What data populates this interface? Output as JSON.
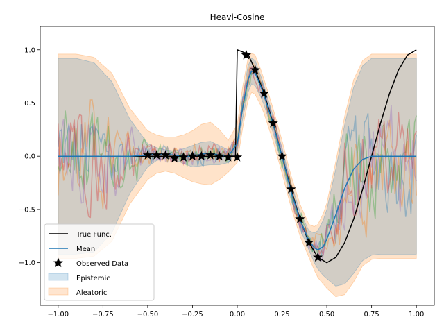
{
  "chart_data": {
    "type": "line",
    "title": "Heavi-Cosine",
    "xlabel": "",
    "ylabel": "",
    "xlim": [
      -1.1,
      1.1
    ],
    "ylim": [
      -1.4,
      1.22
    ],
    "x_ticks": [
      -1.0,
      -0.75,
      -0.5,
      -0.25,
      0.0,
      0.25,
      0.5,
      0.75,
      1.0
    ],
    "x_tick_labels": [
      "−1.00",
      "−0.75",
      "−0.50",
      "−0.25",
      "0.00",
      "0.25",
      "0.50",
      "0.75",
      "1.00"
    ],
    "y_ticks": [
      -1.0,
      -0.5,
      0.0,
      0.5,
      1.0
    ],
    "y_tick_labels": [
      "−1.0",
      "−0.5",
      "0.0",
      "0.5",
      "1.0"
    ],
    "grid": false,
    "legend_position": "lower-left",
    "colors": {
      "true_func": "#000000",
      "mean": "#1f77b4",
      "observed": "#000000",
      "epistemic": "#1f77b4",
      "aleatoric": "#ff7f0e",
      "samples": [
        "#1f77b4",
        "#ff7f0e",
        "#2ca02c",
        "#d62728",
        "#9467bd"
      ]
    },
    "legend": [
      {
        "label": "True Func.",
        "kind": "line-black"
      },
      {
        "label": "Mean",
        "kind": "line-blue"
      },
      {
        "label": "Observed Data",
        "kind": "star"
      },
      {
        "label": "Epistemic",
        "kind": "patch-blue"
      },
      {
        "label": "Aleatoric",
        "kind": "patch-orange"
      }
    ],
    "observed_points": {
      "x": [
        -0.5,
        -0.45,
        -0.4,
        -0.35,
        -0.3,
        -0.25,
        -0.2,
        -0.15,
        -0.1,
        -0.05,
        0.0,
        0.05,
        0.1,
        0.15,
        0.2,
        0.25,
        0.3,
        0.35,
        0.4,
        0.45
      ],
      "y": [
        0.01,
        0.01,
        0.01,
        -0.02,
        -0.01,
        0.0,
        0.0,
        0.01,
        0.0,
        -0.01,
        -0.01,
        0.95,
        0.81,
        0.59,
        0.31,
        0.0,
        -0.31,
        -0.59,
        -0.81,
        -0.95
      ]
    },
    "mean": {
      "x": [
        -1.0,
        -0.9,
        -0.8,
        -0.7,
        -0.6,
        -0.5,
        -0.45,
        -0.4,
        -0.35,
        -0.3,
        -0.25,
        -0.2,
        -0.15,
        -0.1,
        -0.05,
        0.0,
        0.03,
        0.06,
        0.08,
        0.1,
        0.13,
        0.15,
        0.2,
        0.25,
        0.3,
        0.35,
        0.4,
        0.43,
        0.45,
        0.48,
        0.5,
        0.55,
        0.6,
        0.65,
        0.7,
        0.75,
        0.8,
        0.9,
        1.0
      ],
      "y": [
        0.0,
        0.0,
        0.0,
        0.0,
        0.0,
        0.01,
        0.02,
        0.02,
        0.01,
        0.0,
        0.0,
        0.02,
        0.03,
        0.01,
        0.0,
        0.12,
        0.45,
        0.72,
        0.8,
        0.78,
        0.66,
        0.57,
        0.3,
        0.0,
        -0.33,
        -0.6,
        -0.79,
        -0.86,
        -0.88,
        -0.85,
        -0.78,
        -0.55,
        -0.3,
        -0.12,
        -0.03,
        0.0,
        0.0,
        0.0,
        0.0
      ]
    },
    "true_function": {
      "x": [
        -1.0,
        -0.01,
        0.0,
        0.03,
        0.06,
        0.1,
        0.15,
        0.2,
        0.25,
        0.3,
        0.35,
        0.4,
        0.45,
        0.5,
        0.55,
        0.6,
        0.65,
        0.7,
        0.75,
        0.8,
        0.85,
        0.9,
        0.95,
        1.0
      ],
      "y": [
        0.0,
        0.0,
        1.0,
        0.98,
        0.96,
        0.81,
        0.59,
        0.31,
        0.0,
        -0.31,
        -0.59,
        -0.81,
        -0.95,
        -1.0,
        -0.95,
        -0.81,
        -0.59,
        -0.31,
        0.0,
        0.31,
        0.59,
        0.81,
        0.95,
        1.0
      ]
    },
    "epistemic_band": {
      "x": [
        -1.0,
        -0.9,
        -0.8,
        -0.7,
        -0.6,
        -0.5,
        -0.45,
        -0.4,
        -0.35,
        -0.3,
        -0.25,
        -0.2,
        -0.15,
        -0.1,
        -0.05,
        0.0,
        0.03,
        0.06,
        0.08,
        0.1,
        0.13,
        0.15,
        0.2,
        0.25,
        0.3,
        0.35,
        0.4,
        0.43,
        0.45,
        0.48,
        0.5,
        0.55,
        0.6,
        0.65,
        0.7,
        0.75,
        0.8,
        0.9,
        1.0
      ],
      "upper": [
        0.92,
        0.92,
        0.88,
        0.7,
        0.35,
        0.12,
        0.08,
        0.06,
        0.05,
        0.07,
        0.1,
        0.13,
        0.14,
        0.1,
        0.06,
        0.2,
        0.55,
        0.85,
        0.92,
        0.9,
        0.76,
        0.66,
        0.38,
        0.08,
        -0.25,
        -0.52,
        -0.7,
        -0.72,
        -0.7,
        -0.6,
        -0.5,
        -0.12,
        0.3,
        0.65,
        0.85,
        0.92,
        0.92,
        0.92,
        0.92
      ],
      "lower": [
        -0.92,
        -0.92,
        -0.9,
        -0.72,
        -0.35,
        -0.1,
        -0.04,
        -0.02,
        -0.03,
        -0.07,
        -0.1,
        -0.09,
        -0.08,
        -0.08,
        -0.06,
        0.04,
        0.35,
        0.6,
        0.68,
        0.66,
        0.56,
        0.48,
        0.22,
        -0.08,
        -0.41,
        -0.68,
        -0.88,
        -1.0,
        -1.06,
        -1.12,
        -1.15,
        -1.22,
        -1.2,
        -1.1,
        -0.98,
        -0.93,
        -0.92,
        -0.92,
        -0.92
      ]
    },
    "aleatoric_band": {
      "x": [
        -1.0,
        -0.9,
        -0.8,
        -0.7,
        -0.6,
        -0.5,
        -0.45,
        -0.4,
        -0.35,
        -0.3,
        -0.25,
        -0.2,
        -0.15,
        -0.1,
        -0.05,
        0.0,
        0.03,
        0.06,
        0.08,
        0.1,
        0.13,
        0.15,
        0.2,
        0.25,
        0.3,
        0.35,
        0.4,
        0.43,
        0.45,
        0.48,
        0.5,
        0.55,
        0.6,
        0.65,
        0.7,
        0.75,
        0.8,
        0.9,
        1.0
      ],
      "upper": [
        0.96,
        0.96,
        0.93,
        0.78,
        0.45,
        0.24,
        0.2,
        0.18,
        0.18,
        0.2,
        0.24,
        0.3,
        0.32,
        0.25,
        0.15,
        0.3,
        0.65,
        0.92,
        0.97,
        0.95,
        0.82,
        0.72,
        0.45,
        0.15,
        -0.18,
        -0.45,
        -0.64,
        -0.66,
        -0.64,
        -0.54,
        -0.44,
        -0.05,
        0.38,
        0.72,
        0.9,
        0.96,
        0.96,
        0.96,
        0.96
      ],
      "lower": [
        -0.96,
        -0.96,
        -0.94,
        -0.8,
        -0.45,
        -0.22,
        -0.16,
        -0.14,
        -0.16,
        -0.2,
        -0.24,
        -0.26,
        -0.27,
        -0.22,
        -0.15,
        -0.06,
        0.26,
        0.52,
        0.6,
        0.58,
        0.48,
        0.4,
        0.14,
        -0.16,
        -0.48,
        -0.75,
        -0.95,
        -1.07,
        -1.14,
        -1.2,
        -1.24,
        -1.32,
        -1.3,
        -1.18,
        -1.03,
        -0.97,
        -0.96,
        -0.96,
        -0.96
      ]
    }
  }
}
